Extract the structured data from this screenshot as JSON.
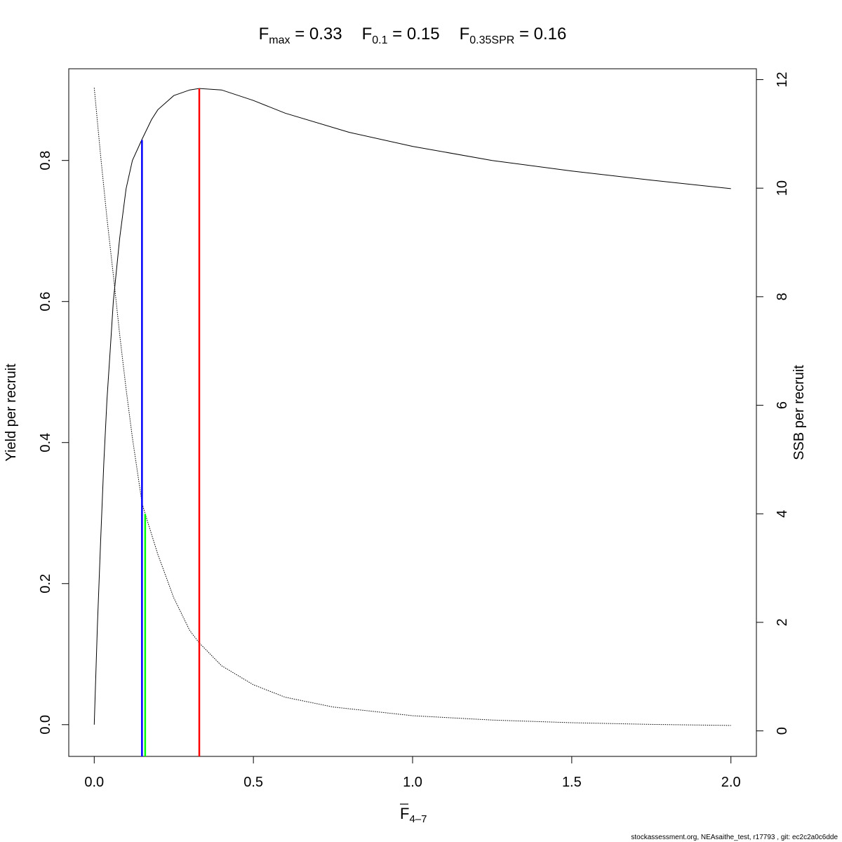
{
  "title": {
    "fmax": {
      "base": "F",
      "sub": "max",
      "eq": " = 0.33"
    },
    "f01": {
      "base": "F",
      "sub": "0.1",
      "eq": " = 0.15"
    },
    "f35": {
      "base": "F",
      "sub": "0.35SPR",
      "eq": " = 0.16"
    }
  },
  "xlabel": {
    "base": "F",
    "sub": "4–7"
  },
  "ylabel_left": "Yield per recruit",
  "ylabel_right": "SSB per recruit",
  "footer": "stockassessment.org, NEAsaithe_test, r17793 , git: ec2c2a0c6dde",
  "chart_data": {
    "type": "line",
    "xlim": [
      -0.08,
      2.08
    ],
    "ylim_left": [
      -0.045,
      0.93
    ],
    "ylim_right": [
      -0.47,
      12.2
    ],
    "x_ticks": [
      0.0,
      0.5,
      1.0,
      1.5,
      2.0
    ],
    "x_tick_labels": [
      "0.0",
      "0.5",
      "1.0",
      "1.5",
      "2.0"
    ],
    "y_left_ticks": [
      0.0,
      0.2,
      0.4,
      0.6,
      0.8
    ],
    "y_left_tick_labels": [
      "0.0",
      "0.2",
      "0.4",
      "0.6",
      "0.8"
    ],
    "y_right_ticks": [
      0,
      2,
      4,
      6,
      8,
      10,
      12
    ],
    "y_right_tick_labels": [
      "0",
      "2",
      "4",
      "6",
      "8",
      "10",
      "12"
    ],
    "grid": false,
    "series": [
      {
        "axis": "left",
        "style": "solid",
        "x": [
          0,
          0.01,
          0.02,
          0.03,
          0.04,
          0.05,
          0.06,
          0.08,
          0.1,
          0.12,
          0.15,
          0.18,
          0.2,
          0.25,
          0.3,
          0.33,
          0.4,
          0.5,
          0.6,
          0.8,
          1.0,
          1.25,
          1.5,
          1.75,
          2.0
        ],
        "values": [
          0.0,
          0.14,
          0.26,
          0.37,
          0.46,
          0.53,
          0.6,
          0.69,
          0.76,
          0.8,
          0.83,
          0.858,
          0.872,
          0.892,
          0.9,
          0.902,
          0.9,
          0.885,
          0.867,
          0.84,
          0.82,
          0.8,
          0.785,
          0.772,
          0.76
        ]
      },
      {
        "axis": "right",
        "style": "dotted",
        "x": [
          0,
          0.02,
          0.04,
          0.06,
          0.08,
          0.1,
          0.12,
          0.15,
          0.16,
          0.2,
          0.25,
          0.3,
          0.33,
          0.4,
          0.5,
          0.6,
          0.75,
          1.0,
          1.25,
          1.5,
          1.75,
          2.0
        ],
        "values": [
          11.85,
          10.6,
          9.45,
          8.4,
          7.3,
          6.3,
          5.4,
          4.2,
          4.0,
          3.25,
          2.45,
          1.85,
          1.62,
          1.2,
          0.85,
          0.62,
          0.44,
          0.28,
          0.2,
          0.15,
          0.12,
          0.1
        ]
      }
    ],
    "reference_lines": [
      {
        "x": 0.33,
        "color": "#ff0000",
        "axis": "left",
        "y_top": 0.902
      },
      {
        "x": 0.15,
        "color": "#0000ff",
        "axis": "left",
        "y_top": 0.829
      },
      {
        "x": 0.16,
        "color": "#00ff00",
        "axis": "right",
        "y_top": 4.0
      }
    ]
  }
}
